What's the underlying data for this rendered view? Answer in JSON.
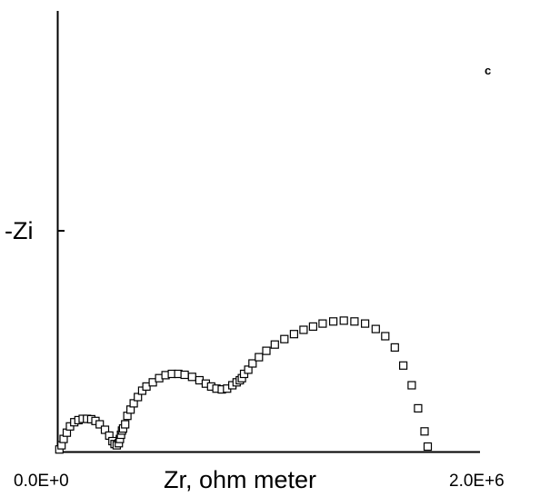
{
  "chart_data": {
    "type": "scatter",
    "title": "",
    "panel_label": "c",
    "xlabel": "Zr, ohm meter",
    "ylabel": "-Zi",
    "x_tick_labels": [
      "0.0E+0",
      "2.0E+6"
    ],
    "xlim": [
      0,
      2000000
    ],
    "ylim": [
      0,
      1050000
    ],
    "marker": "open-square",
    "grid": false,
    "legend": "none",
    "series": [
      {
        "x": [
          10000,
          20000,
          30000,
          45000,
          60000,
          80000,
          100000,
          120000,
          140000,
          160000,
          180000,
          200000,
          225000,
          245000,
          260000,
          270000,
          280000,
          290000,
          295000,
          300000,
          305000,
          310000,
          320000,
          330000,
          345000,
          360000,
          380000,
          400000,
          420000,
          450000,
          480000,
          510000,
          540000,
          570000,
          600000,
          635000,
          670000,
          700000,
          725000,
          750000,
          775000,
          800000,
          825000,
          845000,
          860000,
          870000,
          880000,
          900000,
          920000,
          950000,
          985000,
          1025000,
          1070000,
          1115000,
          1160000,
          1205000,
          1250000,
          1300000,
          1350000,
          1400000,
          1450000,
          1500000,
          1545000,
          1590000,
          1630000,
          1670000,
          1700000,
          1730000,
          1745000
        ],
        "y": [
          5000,
          15000,
          30000,
          45000,
          60000,
          70000,
          75000,
          78000,
          78000,
          77000,
          73000,
          65000,
          52000,
          38000,
          25000,
          18000,
          15000,
          20000,
          30000,
          40000,
          50000,
          55000,
          65000,
          85000,
          100000,
          115000,
          130000,
          145000,
          155000,
          165000,
          175000,
          182000,
          185000,
          185000,
          183000,
          178000,
          170000,
          162000,
          155000,
          150000,
          148000,
          150000,
          158000,
          165000,
          170000,
          175000,
          185000,
          195000,
          210000,
          225000,
          240000,
          255000,
          268000,
          280000,
          290000,
          298000,
          305000,
          310000,
          312000,
          310000,
          305000,
          292000,
          275000,
          248000,
          205000,
          158000,
          103000,
          48000,
          12000
        ]
      }
    ]
  }
}
